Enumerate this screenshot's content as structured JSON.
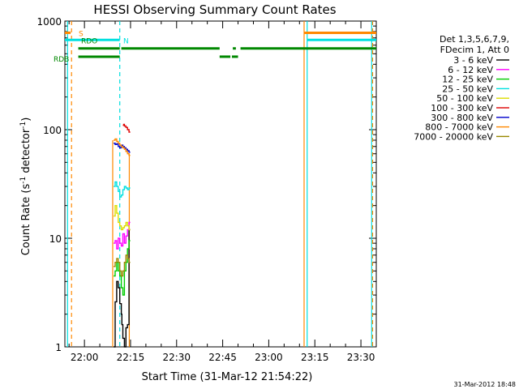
{
  "chart_data": {
    "type": "line",
    "title": "HESSI Observing Summary Count Rates",
    "xlabel": "Start Time (31-Mar-12 21:54:22)",
    "ylabel_main": "Count Rate (s",
    "ylabel_sup1": "-1",
    "ylabel_mid": " detector",
    "ylabel_sup2": "-1",
    "ylabel_end": ")",
    "yscale": "log",
    "ylim": [
      1,
      1000
    ],
    "xlim_minutes": [
      -6.37,
      95.0
    ],
    "x_ticks": [
      {
        "minute": 0,
        "label": "22:00"
      },
      {
        "minute": 15,
        "label": "22:15"
      },
      {
        "minute": 30,
        "label": "22:30"
      },
      {
        "minute": 45,
        "label": "22:45"
      },
      {
        "minute": 60,
        "label": "23:00"
      },
      {
        "minute": 75,
        "label": "23:15"
      },
      {
        "minute": 90,
        "label": "23:30"
      }
    ],
    "y_ticks": [
      {
        "value": 1,
        "label": "1"
      },
      {
        "value": 10,
        "label": "10"
      },
      {
        "value": 100,
        "label": "100"
      },
      {
        "value": 1000,
        "label": "1000"
      }
    ],
    "legend_header": [
      "Det 1,3,5,6,7,9,",
      "FDecim 1, Att 0"
    ],
    "legend_position": "right",
    "timestamp": "31-Mar-2012 18:48",
    "series": [
      {
        "name": "3 - 6 keV",
        "color": "#000000",
        "x": [
          9.5,
          10.0,
          10.5,
          11.0,
          11.5,
          12.0,
          12.2,
          12.5,
          13.0,
          13.5,
          14.0,
          14.5
        ],
        "y": [
          1.0,
          2.6,
          4.0,
          3.5,
          2.5,
          2.0,
          1.6,
          1.2,
          1.0,
          1.5,
          1.6,
          12.0
        ]
      },
      {
        "name": "6 - 12 keV",
        "color": "#ff00ff",
        "x": [
          9.5,
          10.0,
          10.5,
          11.0,
          11.5,
          12.0,
          12.5,
          13.0,
          13.5,
          14.0,
          14.5
        ],
        "y": [
          9.0,
          9.5,
          8.0,
          10.0,
          9.0,
          8.5,
          11.0,
          9.0,
          10.5,
          12.0,
          14.0
        ]
      },
      {
        "name": "12 - 25 keV",
        "color": "#00cc00",
        "x": [
          9.5,
          10.0,
          10.5,
          11.0,
          11.5,
          12.0,
          12.5,
          13.0,
          13.5,
          14.0,
          14.5
        ],
        "y": [
          4.5,
          5.0,
          6.0,
          5.0,
          4.5,
          3.5,
          3.0,
          5.0,
          6.0,
          8.0,
          9.5
        ]
      },
      {
        "name": "25 - 50 keV",
        "color": "#00e0e0",
        "x": [
          9.5,
          10.0,
          10.5,
          11.0,
          11.5,
          12.0,
          12.5,
          13.0,
          13.5,
          14.0,
          14.5
        ],
        "y": [
          30.0,
          33.0,
          30.0,
          27.0,
          24.0,
          25.0,
          28.0,
          30.0,
          29.0,
          28.0,
          29.0
        ]
      },
      {
        "name": "50 - 100 keV",
        "color": "#dddd00",
        "x": [
          9.5,
          10.0,
          10.5,
          11.0,
          11.5,
          12.0,
          12.5,
          13.0,
          13.5,
          14.0,
          14.5
        ],
        "y": [
          16.0,
          20.0,
          17.0,
          14.0,
          13.0,
          12.0,
          12.5,
          13.0,
          14.0,
          13.0,
          12.0
        ]
      },
      {
        "name": "100 - 300 keV",
        "color": "#dd0000",
        "x": [
          12.5,
          12.8,
          13.0,
          13.5,
          14.0,
          14.5
        ],
        "y": [
          110.0,
          112.0,
          108.0,
          105.0,
          100.0,
          95.0
        ]
      },
      {
        "name": "300 - 800 keV",
        "color": "#0000cc",
        "x": [
          9.5,
          10.0,
          10.5,
          11.0,
          11.5,
          12.0,
          12.5,
          13.0,
          13.5,
          14.0,
          14.5
        ],
        "y": [
          75.0,
          73.0,
          74.0,
          70.0,
          68.0,
          72.0,
          70.0,
          68.0,
          66.0,
          64.0,
          62.0
        ]
      },
      {
        "name": "800 - 7000 keV",
        "color": "#ff8800",
        "x": [
          9.5,
          10.0,
          10.5,
          11.0,
          11.5,
          12.0,
          12.5,
          13.0,
          13.5,
          14.0,
          14.5
        ],
        "y": [
          80.0,
          82.0,
          78.0,
          75.0,
          72.0,
          70.0,
          68.0,
          66.0,
          63.0,
          60.0,
          58.0
        ]
      },
      {
        "name": "7000 - 20000 keV",
        "color": "#998800",
        "x": [
          9.5,
          10.0,
          10.5,
          11.0,
          11.5,
          12.0,
          12.5,
          13.0,
          13.5,
          14.0,
          14.5
        ],
        "y": [
          5.5,
          6.0,
          6.5,
          6.0,
          5.0,
          4.5,
          5.0,
          6.0,
          7.0,
          6.5,
          6.0
        ]
      }
    ],
    "flags": [
      {
        "label": "S",
        "color": "#ff8800",
        "y": 780,
        "segments": [
          [
            -6.37,
            -4.5
          ],
          [
            71.5,
            95.0
          ]
        ]
      },
      {
        "label": "N",
        "color": "#00e0e0",
        "y": 670,
        "segments": [
          [
            -6.37,
            11.5
          ],
          [
            72.5,
            95.0
          ]
        ]
      },
      {
        "label": "RDO",
        "color": "#008800",
        "y": 560,
        "segments": [
          [
            -2.0,
            11.5
          ],
          [
            12.0,
            44.0
          ],
          [
            48.3,
            49.3
          ],
          [
            50.8,
            95.0
          ]
        ]
      },
      {
        "label": "RDB",
        "color": "#008800",
        "y": 470,
        "segments": [
          [
            -2.0,
            11.5
          ],
          [
            44.0,
            47.5
          ],
          [
            48.0,
            50.0
          ]
        ]
      }
    ],
    "vlines": [
      {
        "minute": -5.5,
        "color": "#00e0e0",
        "dash": false
      },
      {
        "minute": -4.2,
        "color": "#ff8800",
        "dash": true
      },
      {
        "minute": 11.5,
        "color": "#00e0e0",
        "dash": true
      },
      {
        "minute": 9.2,
        "color": "#ff8800",
        "dash": false,
        "from": 1,
        "to": 80
      },
      {
        "minute": 14.6,
        "color": "#ff8800",
        "dash": false,
        "from": 1,
        "to": 60
      },
      {
        "minute": 71.5,
        "color": "#ff8800",
        "dash": false
      },
      {
        "minute": 72.5,
        "color": "#00e0e0",
        "dash": false
      },
      {
        "minute": 93.5,
        "color": "#00e0e0",
        "dash": false
      },
      {
        "minute": 93.8,
        "color": "#ff8800",
        "dash": true
      }
    ]
  }
}
